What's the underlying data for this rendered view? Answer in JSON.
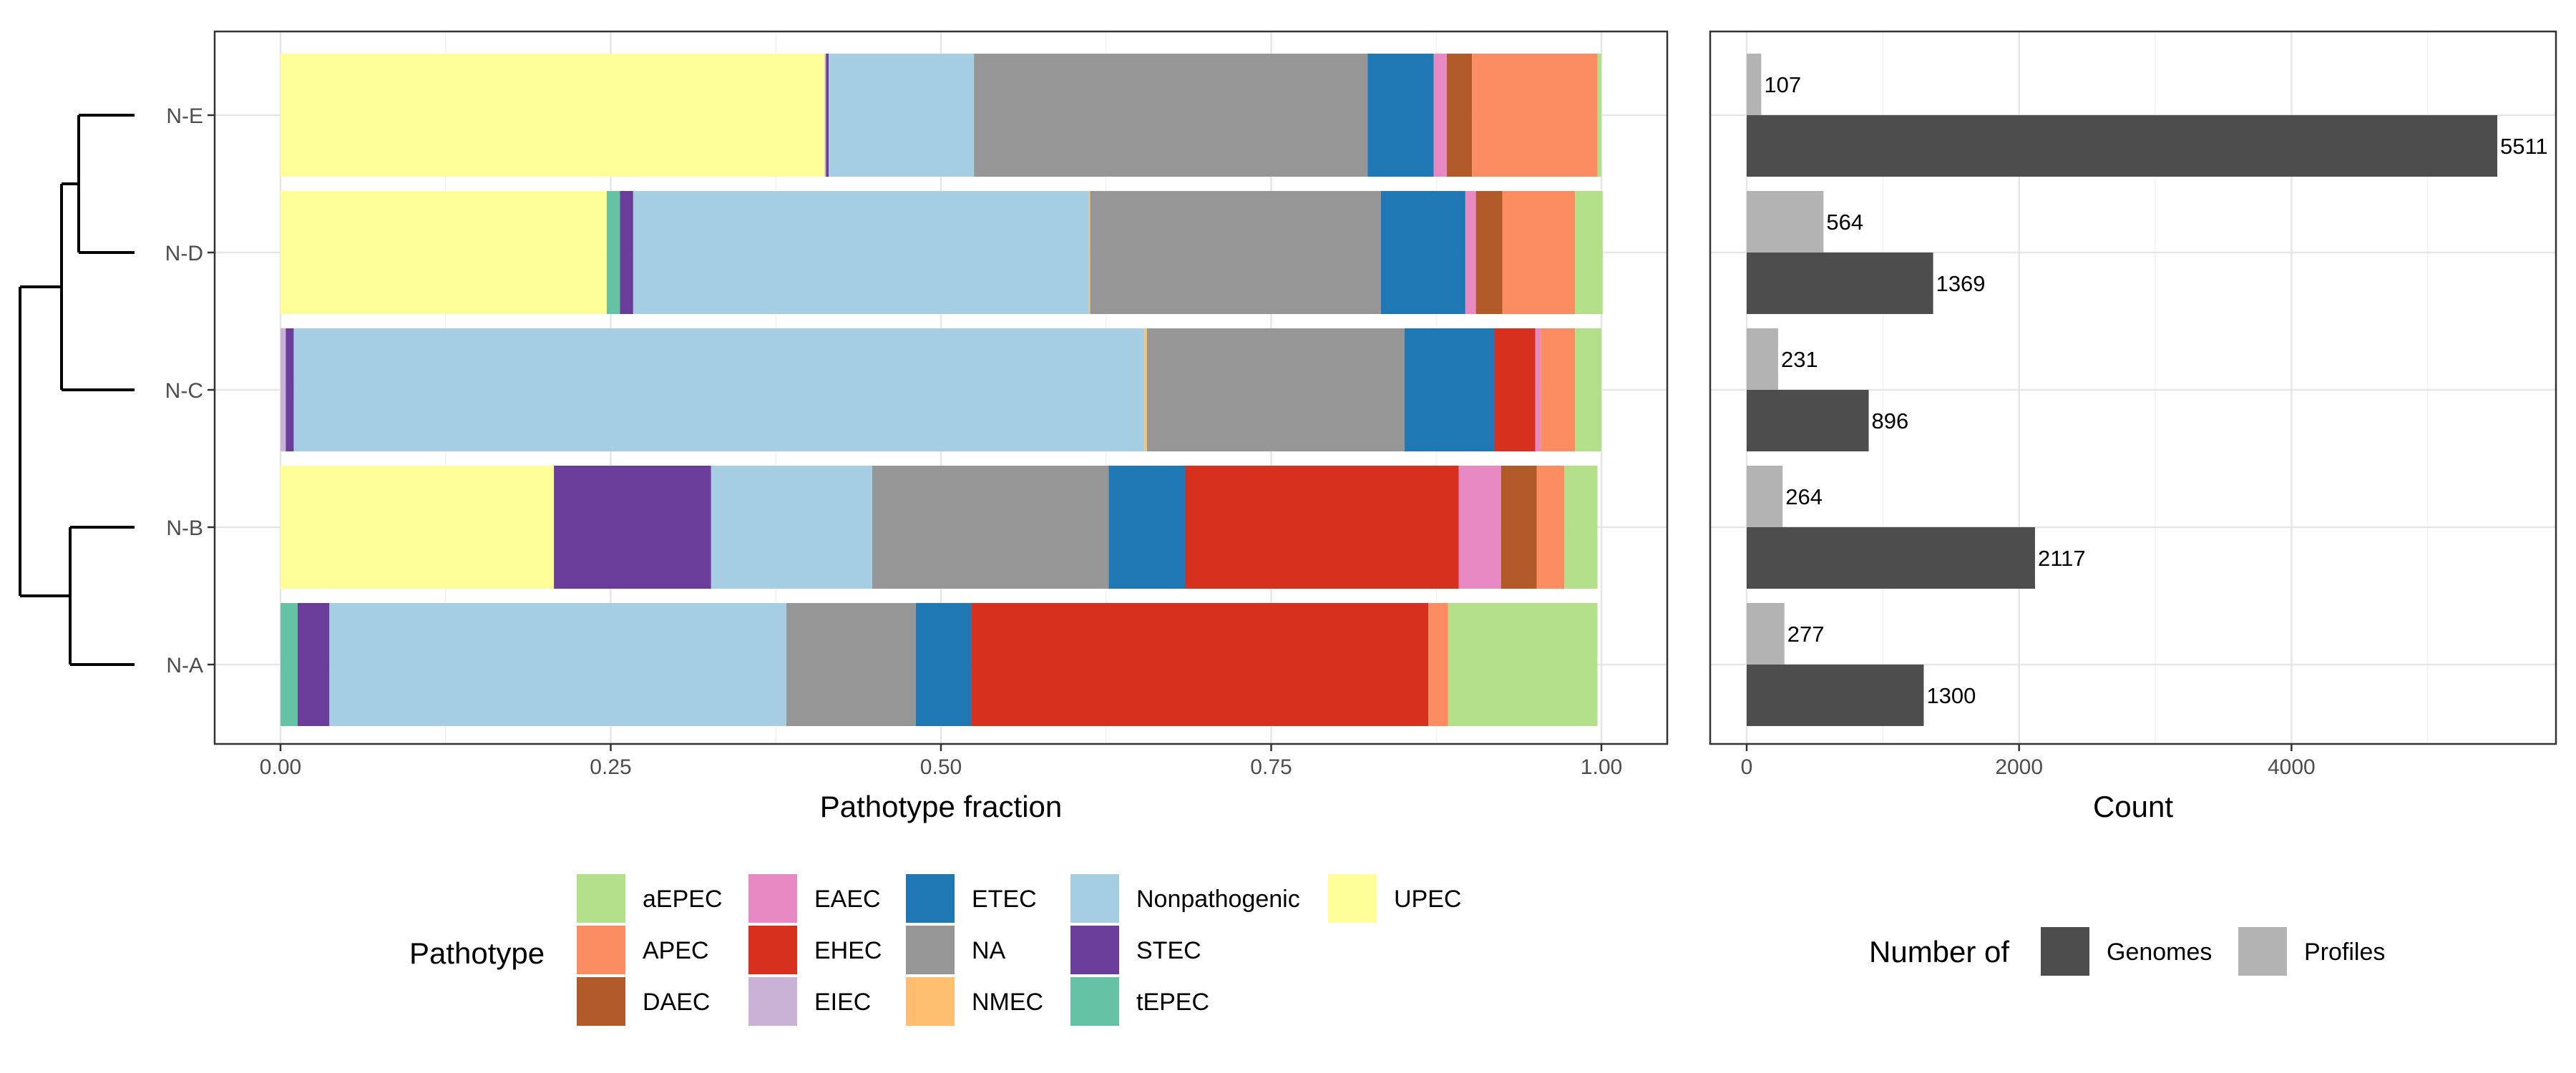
{
  "chart_data": [
    {
      "type": "bar",
      "orientation": "horizontal",
      "stacked": true,
      "xlabel": "Pathotype fraction",
      "ylabel": "",
      "xlim": [
        0,
        1
      ],
      "xticks": [
        "0.00",
        "0.25",
        "0.50",
        "0.75",
        "1.00"
      ],
      "xtick_values": [
        0,
        0.25,
        0.5,
        0.75,
        1.0
      ],
      "grid": true,
      "categories": [
        "N-E",
        "N-D",
        "N-C",
        "N-B",
        "N-A"
      ],
      "series": [
        {
          "name": "UPEC",
          "color": "#ffff99",
          "values": [
            0.412,
            0.247,
            0.0,
            0.207,
            0.0
          ]
        },
        {
          "name": "tEPEC",
          "color": "#66c2a5",
          "values": [
            0.0,
            0.01,
            0.0,
            0.0,
            0.013
          ]
        },
        {
          "name": "EIEC",
          "color": "#cab2d6",
          "values": [
            0.001,
            0.0,
            0.004,
            0.0,
            0.0
          ]
        },
        {
          "name": "STEC",
          "color": "#6a3d9a",
          "values": [
            0.002,
            0.01,
            0.006,
            0.119,
            0.024
          ]
        },
        {
          "name": "Nonpathogenic",
          "color": "#a6cee3",
          "values": [
            0.11,
            0.345,
            0.644,
            0.122,
            0.346
          ]
        },
        {
          "name": "NMEC",
          "color": "#fdbf6f",
          "values": [
            0.0,
            0.001,
            0.002,
            0.0,
            0.0
          ]
        },
        {
          "name": "NA",
          "color": "#969696",
          "values": [
            0.298,
            0.22,
            0.195,
            0.179,
            0.098
          ]
        },
        {
          "name": "ETEC",
          "color": "#1f78b4",
          "values": [
            0.05,
            0.064,
            0.068,
            0.058,
            0.042
          ]
        },
        {
          "name": "EHEC",
          "color": "#d7301f",
          "values": [
            0.0,
            0.0,
            0.031,
            0.207,
            0.346
          ]
        },
        {
          "name": "EAEC",
          "color": "#e78ac3",
          "values": [
            0.01,
            0.008,
            0.004,
            0.032,
            0.0
          ]
        },
        {
          "name": "DAEC",
          "color": "#b15928",
          "values": [
            0.019,
            0.02,
            0.0,
            0.027,
            0.0
          ]
        },
        {
          "name": "APEC",
          "color": "#fc8d62",
          "values": [
            0.095,
            0.055,
            0.026,
            0.021,
            0.015
          ]
        },
        {
          "name": "aEPEC",
          "color": "#b3de8a",
          "values": [
            0.003,
            0.021,
            0.02,
            0.025,
            0.113
          ]
        }
      ],
      "legend": {
        "title": "Pathotype",
        "placement": "bottom",
        "columns": [
          [
            {
              "label": "aEPEC",
              "color": "#b3de8a"
            },
            {
              "label": "APEC",
              "color": "#fc8d62"
            },
            {
              "label": "DAEC",
              "color": "#b15928"
            }
          ],
          [
            {
              "label": "EAEC",
              "color": "#e78ac3"
            },
            {
              "label": "EHEC",
              "color": "#d7301f"
            },
            {
              "label": "EIEC",
              "color": "#cab2d6"
            }
          ],
          [
            {
              "label": "ETEC",
              "color": "#1f78b4"
            },
            {
              "label": "NA",
              "color": "#969696"
            },
            {
              "label": "NMEC",
              "color": "#fdbf6f"
            }
          ],
          [
            {
              "label": "Nonpathogenic",
              "color": "#a6cee3"
            },
            {
              "label": "STEC",
              "color": "#6a3d9a"
            },
            {
              "label": "tEPEC",
              "color": "#66c2a5"
            }
          ],
          [
            {
              "label": "UPEC",
              "color": "#ffff99"
            }
          ]
        ]
      },
      "dendrogram": {
        "present": true,
        "tree": "((N-E,N-D),N-C),(N-B,N-A)"
      }
    },
    {
      "type": "bar",
      "orientation": "horizontal",
      "grouped": true,
      "xlabel": "Count",
      "ylabel": "",
      "xlim": [
        0,
        5900
      ],
      "xticks": [
        "0",
        "2000",
        "4000"
      ],
      "xtick_values": [
        0,
        2000,
        4000
      ],
      "grid": true,
      "categories": [
        "N-E",
        "N-D",
        "N-C",
        "N-B",
        "N-A"
      ],
      "series": [
        {
          "name": "Profiles",
          "color": "#b3b3b3",
          "values": [
            107,
            564,
            231,
            264,
            277
          ],
          "labels": [
            "107",
            "564",
            "231",
            "264",
            "277"
          ]
        },
        {
          "name": "Genomes",
          "color": "#4d4d4d",
          "values": [
            5511,
            1369,
            896,
            2117,
            1300
          ],
          "labels": [
            "5511",
            "1369",
            "896",
            "2117",
            "1300"
          ]
        }
      ],
      "legend": {
        "title": "Number of",
        "placement": "bottom",
        "items": [
          {
            "label": "Genomes",
            "color": "#4d4d4d"
          },
          {
            "label": "Profiles",
            "color": "#b3b3b3"
          }
        ]
      }
    }
  ]
}
